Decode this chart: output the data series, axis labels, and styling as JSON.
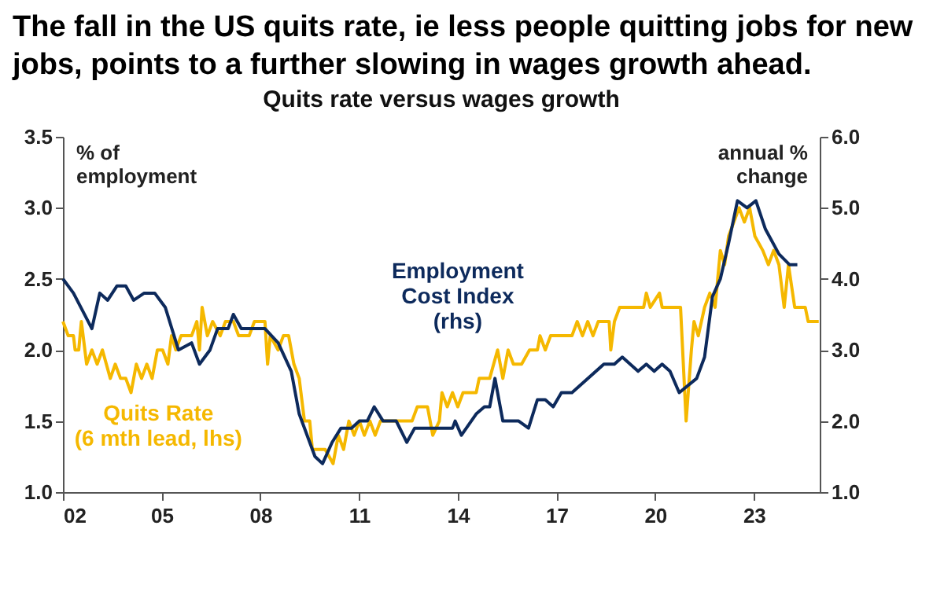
{
  "chart_data": {
    "type": "line",
    "title": "The fall in the US quits rate, ie less people quitting jobs for new jobs, points to a further slowing in wages growth ahead.",
    "subtitle": "Quits rate versus wages growth",
    "ylabel": "% of\nemployment",
    "y2label": "annual %\nchange",
    "xlim": [
      2002,
      2025
    ],
    "xticks": [
      {
        "value": 2002,
        "label": "02"
      },
      {
        "value": 2005,
        "label": "05"
      },
      {
        "value": 2008,
        "label": "08"
      },
      {
        "value": 2011,
        "label": "11"
      },
      {
        "value": 2014,
        "label": "14"
      },
      {
        "value": 2017,
        "label": "17"
      },
      {
        "value": 2020,
        "label": "20"
      },
      {
        "value": 2023,
        "label": "23"
      }
    ],
    "ylim": [
      1,
      3.5
    ],
    "yticks": [
      {
        "value": 1,
        "label": "1.0"
      },
      {
        "value": 1.5,
        "label": "1.5"
      },
      {
        "value": 2,
        "label": "2.0"
      },
      {
        "value": 2.5,
        "label": "2.5"
      },
      {
        "value": 3,
        "label": "3.0"
      },
      {
        "value": 3.5,
        "label": "3.5"
      }
    ],
    "y2lim": [
      1,
      6
    ],
    "y2ticks": [
      {
        "value": 1,
        "label": "1.0"
      },
      {
        "value": 2,
        "label": "2.0"
      },
      {
        "value": 3,
        "label": "3.0"
      },
      {
        "value": 4,
        "label": "4.0"
      },
      {
        "value": 5,
        "label": "5.0"
      },
      {
        "value": 6,
        "label": "6.0"
      }
    ],
    "grid": false,
    "legend": false,
    "marker": "none",
    "line_style": "solid",
    "series": [
      {
        "name": "Quits Rate\n(6 mth lead, lhs)",
        "color": "#f5b800",
        "x": [
          2002.0,
          2002.16,
          2002.32,
          2002.37,
          2002.48,
          2002.56,
          2002.72,
          2002.88,
          2003.04,
          2003.2,
          2003.44,
          2003.59,
          2003.75,
          2003.91,
          2004.07,
          2004.23,
          2004.39,
          2004.55,
          2004.71,
          2004.87,
          2005.03,
          2005.19,
          2005.3,
          2005.43,
          2005.59,
          2005.91,
          2006.07,
          2006.15,
          2006.23,
          2006.39,
          2006.55,
          2006.78,
          2006.94,
          2007.18,
          2007.34,
          2007.66,
          2007.82,
          2008.14,
          2008.22,
          2008.3,
          2008.54,
          2008.7,
          2008.86,
          2009.02,
          2009.18,
          2009.34,
          2009.5,
          2009.58,
          2009.97,
          2010.21,
          2010.37,
          2010.53,
          2010.69,
          2010.85,
          2011.01,
          2011.16,
          2011.33,
          2011.49,
          2011.65,
          2011.97,
          2012.61,
          2012.77,
          2013.08,
          2013.24,
          2013.44,
          2013.52,
          2013.68,
          2013.84,
          2014.0,
          2014.16,
          2014.56,
          2014.65,
          2014.97,
          2015.21,
          2015.37,
          2015.53,
          2015.69,
          2015.94,
          2016.18,
          2016.42,
          2016.5,
          2016.66,
          2016.82,
          2017.47,
          2017.63,
          2017.79,
          2017.95,
          2018.11,
          2018.27,
          2018.6,
          2018.65,
          2018.76,
          2018.92,
          2019.65,
          2019.73,
          2019.85,
          2020.13,
          2020.21,
          2020.77,
          2020.94,
          2021.1,
          2021.18,
          2021.31,
          2021.5,
          2021.66,
          2021.82,
          2021.98,
          2022.11,
          2022.23,
          2022.39,
          2022.55,
          2022.71,
          2022.87,
          2023.03,
          2023.27,
          2023.44,
          2023.6,
          2023.76,
          2023.92,
          2024.05,
          2024.24,
          2024.56,
          2024.65,
          2024.97
        ],
        "values": [
          2.2,
          2.1,
          2.1,
          2.0,
          2.0,
          2.2,
          1.9,
          2.0,
          1.9,
          2.0,
          1.8,
          1.9,
          1.8,
          1.8,
          1.7,
          1.9,
          1.8,
          1.9,
          1.8,
          2.0,
          2.0,
          1.9,
          2.1,
          2.0,
          2.1,
          2.1,
          2.2,
          2.0,
          2.3,
          2.1,
          2.2,
          2.1,
          2.2,
          2.2,
          2.1,
          2.1,
          2.2,
          2.2,
          1.9,
          2.1,
          2.0,
          2.1,
          2.1,
          1.9,
          1.8,
          1.5,
          1.5,
          1.3,
          1.3,
          1.2,
          1.4,
          1.3,
          1.5,
          1.4,
          1.5,
          1.4,
          1.5,
          1.4,
          1.5,
          1.5,
          1.5,
          1.6,
          1.6,
          1.4,
          1.5,
          1.7,
          1.6,
          1.7,
          1.6,
          1.7,
          1.7,
          1.8,
          1.8,
          2.0,
          1.8,
          2.0,
          1.9,
          1.9,
          2.0,
          2.0,
          2.1,
          2.0,
          2.1,
          2.1,
          2.2,
          2.1,
          2.2,
          2.1,
          2.2,
          2.2,
          2.0,
          2.2,
          2.3,
          2.3,
          2.4,
          2.3,
          2.4,
          2.3,
          2.3,
          1.5,
          2.0,
          2.2,
          2.1,
          2.3,
          2.4,
          2.3,
          2.7,
          2.6,
          2.8,
          2.9,
          3.0,
          2.9,
          3.0,
          2.8,
          2.7,
          2.6,
          2.7,
          2.6,
          2.3,
          2.6,
          2.3,
          2.3,
          2.2,
          2.2
        ]
      },
      {
        "name": "Employment\nCost Index\n(rhs)",
        "color": "#0d2a5c",
        "axis": "y2",
        "x": [
          2002.0,
          2002.32,
          2002.88,
          2003.12,
          2003.36,
          2003.64,
          2003.91,
          2004.15,
          2004.47,
          2004.79,
          2005.11,
          2005.51,
          2005.91,
          2006.15,
          2006.47,
          2006.7,
          2007.02,
          2007.18,
          2007.42,
          2008.14,
          2008.54,
          2008.94,
          2009.18,
          2009.66,
          2009.89,
          2010.18,
          2010.45,
          2010.77,
          2011.01,
          2011.25,
          2011.46,
          2011.73,
          2012.13,
          2012.45,
          2012.69,
          2013.27,
          2013.84,
          2013.92,
          2014.11,
          2014.56,
          2014.81,
          2014.97,
          2015.13,
          2015.37,
          2015.85,
          2016.15,
          2016.42,
          2016.66,
          2016.9,
          2017.15,
          2017.47,
          2018.44,
          2018.76,
          2019.0,
          2019.48,
          2019.73,
          2019.97,
          2020.21,
          2020.45,
          2020.73,
          2021.26,
          2021.5,
          2021.74,
          2021.98,
          2022.23,
          2022.5,
          2022.79,
          2023.06,
          2023.35,
          2023.76,
          2024.08,
          2024.32
        ],
        "values": [
          4.0,
          3.8,
          3.3,
          3.8,
          3.7,
          3.9,
          3.9,
          3.7,
          3.8,
          3.8,
          3.6,
          3.0,
          3.1,
          2.8,
          3.0,
          3.3,
          3.3,
          3.5,
          3.3,
          3.3,
          3.1,
          2.7,
          2.1,
          1.5,
          1.4,
          1.7,
          1.9,
          1.9,
          2.0,
          2.0,
          2.2,
          2.0,
          2.0,
          1.7,
          1.9,
          1.9,
          1.9,
          2.0,
          1.8,
          2.1,
          2.2,
          2.2,
          2.6,
          2.0,
          2.0,
          1.9,
          2.3,
          2.3,
          2.2,
          2.4,
          2.4,
          2.8,
          2.8,
          2.9,
          2.7,
          2.8,
          2.7,
          2.8,
          2.7,
          2.4,
          2.6,
          2.9,
          3.75,
          4.0,
          4.5,
          5.1,
          5.0,
          5.1,
          4.7,
          4.35,
          4.2,
          4.2
        ]
      }
    ]
  }
}
